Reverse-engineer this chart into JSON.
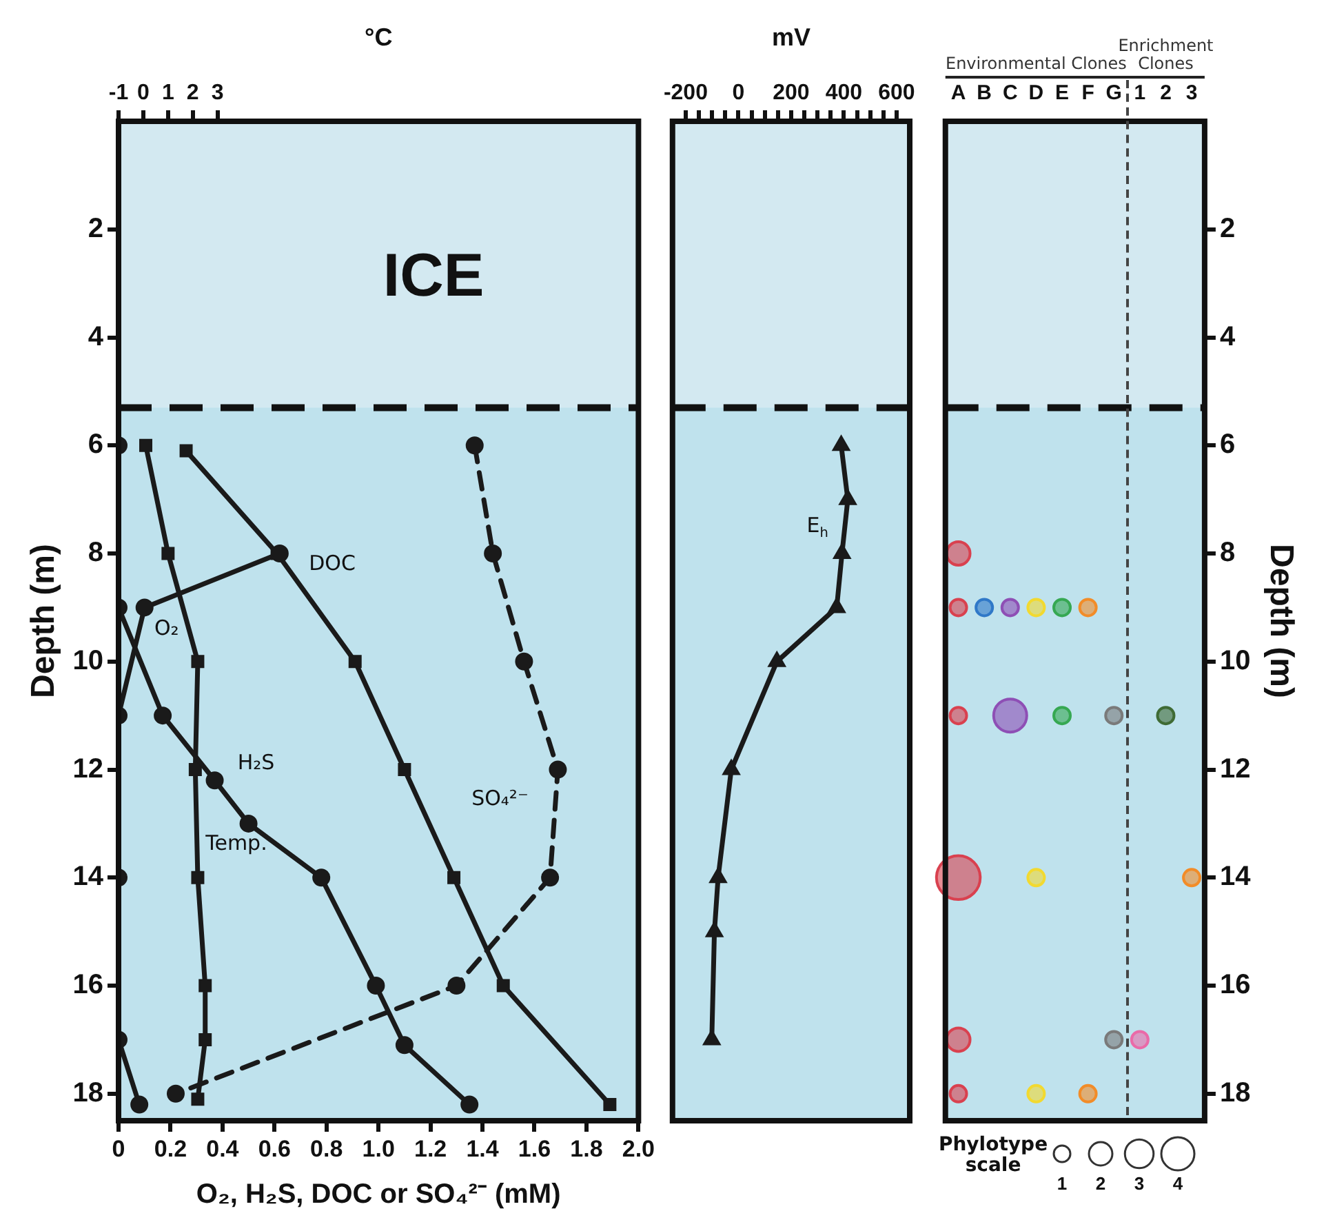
{
  "chart_data": [
    {
      "type": "line",
      "xlabel": "O₂, H₂S, DOC or SO₄²⁻ (mM)",
      "ylabel": "Depth (m)",
      "x2label": "°C",
      "xlim": [
        0,
        2.0
      ],
      "xticks": [
        0,
        0.2,
        0.4,
        0.6,
        0.8,
        {
          "value": 1.0,
          "label": "1.0"
        },
        1.2,
        1.4,
        1.6,
        1.8,
        {
          "value": 2.0,
          "label": "2.0"
        }
      ],
      "x2lim": [
        -1,
        20
      ],
      "x2ticks": [
        -1,
        0,
        1,
        2,
        3
      ],
      "ylim": [
        18.5,
        0
      ],
      "yticks": [
        2,
        4,
        6,
        8,
        10,
        12,
        14,
        16,
        18
      ],
      "bands": [
        {
          "axis": "y",
          "from": 0,
          "to": 5.3,
          "label": "ICE",
          "color": "#d3e9f1"
        }
      ],
      "ref_lines": [
        {
          "axis": "y",
          "value": 5.3,
          "color": "#111111",
          "line_style": "dashed"
        }
      ],
      "series": [
        {
          "name": "O₂",
          "color": "#1a1a1a",
          "marker": "circle",
          "x": [
            0.62,
            0.1,
            0,
            0,
            0,
            0.08
          ],
          "values": [
            8,
            9,
            11,
            14,
            17,
            18.2
          ]
        },
        {
          "name": "H₂S",
          "color": "#1a1a1a",
          "marker": "circle",
          "x": [
            0,
            0,
            0.17,
            0.37,
            0.5,
            0.78,
            0.99,
            1.1,
            1.35
          ],
          "values": [
            6,
            9,
            11,
            12.2,
            13,
            14,
            16,
            17.1,
            18.2
          ]
        },
        {
          "name": "DOC",
          "color": "#1a1a1a",
          "marker": "square",
          "x": [
            0.26,
            0.61,
            0.91,
            1.1,
            1.29,
            1.48,
            1.89
          ],
          "values": [
            6.1,
            8,
            10,
            12,
            14,
            16,
            18.2
          ]
        },
        {
          "name": "SO₄²⁻",
          "color": "#1a1a1a",
          "marker": "circle",
          "line_style": "dashed",
          "x": [
            1.37,
            1.44,
            1.56,
            1.69,
            1.66,
            1.3,
            0.22
          ],
          "values": [
            6,
            8,
            10,
            12,
            14,
            16,
            18
          ]
        },
        {
          "name": "Temp.",
          "color": "#1a1a1a",
          "marker": "square",
          "axis": "x2",
          "x": [
            0.1,
            1.0,
            2.2,
            2.1,
            2.2,
            2.5,
            2.5,
            2.2
          ],
          "values": [
            6,
            8,
            10,
            12,
            14,
            16,
            17,
            18.1
          ]
        }
      ]
    },
    {
      "type": "line",
      "xlabel": "mV",
      "tick_labels": "x",
      "xlim": [
        -250,
        650
      ],
      "xticks": [
        -200,
        {
          "value": -150,
          "label": null
        },
        {
          "value": -100,
          "label": null
        },
        {
          "value": -50,
          "label": null
        },
        0,
        {
          "value": 50,
          "label": null
        },
        {
          "value": 100,
          "label": null
        },
        {
          "value": 150,
          "label": null
        },
        200,
        {
          "value": 250,
          "label": null
        },
        {
          "value": 300,
          "label": null
        },
        {
          "value": 350,
          "label": null
        },
        400,
        {
          "value": 450,
          "label": null
        },
        {
          "value": 500,
          "label": null
        },
        {
          "value": 550,
          "label": null
        },
        600
      ],
      "ylim": [
        18.5,
        0
      ],
      "bands": [
        {
          "axis": "y",
          "from": 0,
          "to": 5.3,
          "color": "#d3e9f1"
        }
      ],
      "ref_lines": [
        {
          "axis": "y",
          "value": 5.3,
          "color": "#111111",
          "line_style": "dashed"
        }
      ],
      "series": [
        {
          "name": "E$_{h}$",
          "color": "#1a1a1a",
          "marker": "triangle",
          "x": [
            390,
            415,
            393,
            373,
            146,
            -27,
            -77,
            -91,
            -101
          ],
          "values": [
            6,
            7,
            8,
            9,
            10,
            12,
            14,
            15,
            17
          ]
        }
      ]
    },
    {
      "type": "bubble",
      "categories": [
        "A",
        "B",
        "C",
        "D",
        "E",
        "F",
        "G",
        "1",
        "2",
        "3"
      ],
      "ylabel": "Depth (m)",
      "ylim": [
        18.5,
        0
      ],
      "yticks": [
        2,
        4,
        6,
        8,
        10,
        12,
        14,
        16,
        18
      ],
      "legend_title": "Phylotype scale",
      "size_legend": [
        1,
        2,
        3,
        4
      ],
      "annotations": [
        "Environmental Clones",
        "Enrichment Clones"
      ],
      "bands": [
        {
          "axis": "y",
          "from": 0,
          "to": 5.3,
          "color": "#d3e9f1"
        }
      ],
      "ref_lines": [
        {
          "axis": "y",
          "value": 5.3,
          "color": "#111111",
          "line_style": "dashed"
        }
      ],
      "series": [
        {
          "x": [
            "A",
            "A",
            "B",
            "C",
            "D",
            "E",
            "F",
            "A",
            "C",
            "E",
            "G",
            "2",
            "A",
            "D",
            "3",
            "A",
            "G",
            "1",
            "A",
            "D",
            "F"
          ],
          "values": [
            8,
            9,
            9,
            9,
            9,
            9,
            9,
            11,
            11,
            11,
            11,
            11,
            14,
            14,
            14,
            17,
            17,
            17,
            18,
            18,
            18
          ],
          "sizes": [
            2,
            1,
            1,
            1,
            1,
            1,
            1,
            1,
            4,
            1,
            1,
            1,
            7,
            1,
            1,
            2,
            1,
            1,
            1,
            1,
            1
          ],
          "colors": [
            "#d9414f",
            "#d9414f",
            "#2f78c8",
            "#8e4fb5",
            "#f2d930",
            "#36a852",
            "#f28c28",
            "#d9414f",
            "#8e4fb5",
            "#36a852",
            "#7a7a7a",
            "#3f6b35",
            "#d9414f",
            "#f2d930",
            "#f28c28",
            "#d9414f",
            "#7a7a7a",
            "#ea6aa8",
            "#d9414f",
            "#f2d930",
            "#f28c28"
          ]
        }
      ]
    }
  ]
}
